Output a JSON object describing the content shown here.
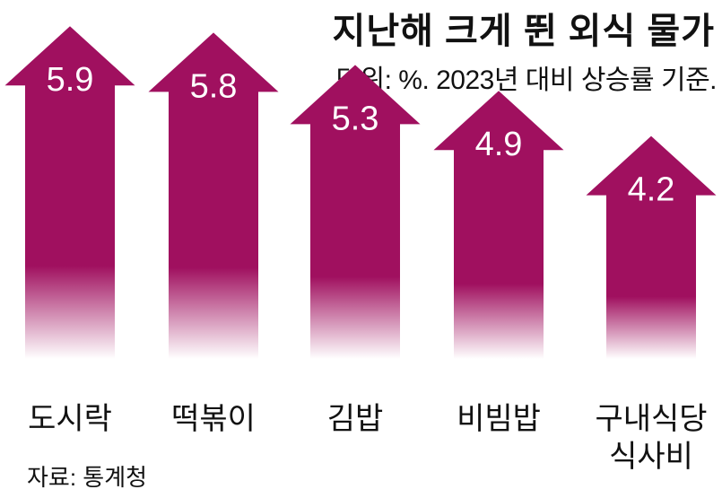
{
  "chart_data": {
    "type": "bar",
    "title": "지난해 크게 뛴 외식 물가",
    "subtitle": "단위: %. 2023년 대비 상승률 기준.",
    "categories": [
      [
        "도시락"
      ],
      [
        "떡볶이"
      ],
      [
        "김밥"
      ],
      [
        "비빔밥"
      ],
      [
        "구내식당",
        "식사비"
      ]
    ],
    "values": [
      5.9,
      5.8,
      5.3,
      4.9,
      4.2
    ],
    "value_labels": [
      "5.9",
      "5.8",
      "5.3",
      "4.9",
      "4.2"
    ],
    "source": "자료: 통계청",
    "colors": {
      "bar_top": "#a0105f",
      "bar_bottom": "#ffffff"
    },
    "mark_shape": "upward-arrow"
  }
}
